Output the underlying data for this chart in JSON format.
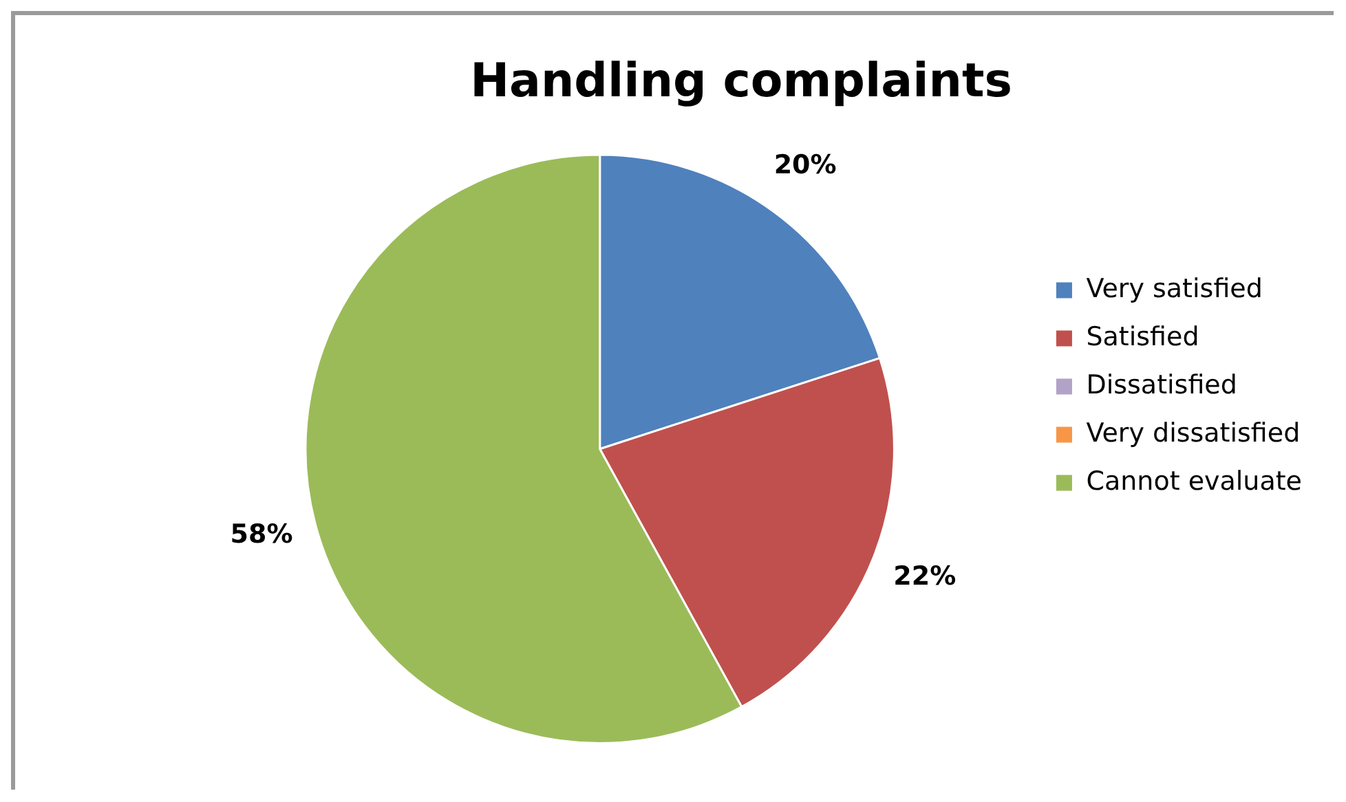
{
  "chart_data": {
    "type": "pie",
    "title": "Handling complaints",
    "categories": [
      "Very satisfied",
      "Satisfied",
      "Dissatisfied",
      "Very dissatisfied",
      "Cannot evaluate"
    ],
    "values": [
      20,
      22,
      0,
      0,
      58
    ],
    "colors": [
      "#4f81bd",
      "#c0504d",
      "#b3a2c7",
      "#f79646",
      "#9bbb59"
    ],
    "value_labels": [
      "20%",
      "22%",
      null,
      null,
      "58%"
    ],
    "legend": "right"
  }
}
